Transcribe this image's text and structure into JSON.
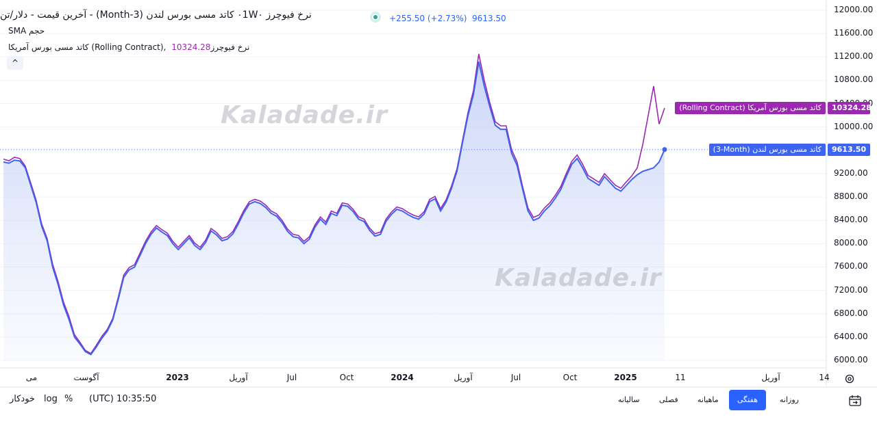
{
  "legend": {
    "title": "نرخ فیوچرز ۰1W۰ کاتد مسی بورس لندن (Month-3) - آخرین قیمت - دلار/تن",
    "change": "+255.50 (+2.73%)",
    "last": "9613.50",
    "volume_label": "SMA حجم",
    "us_series_label": "کاتد مسی بورس آمریکا (Rolling Contract), نرخ فیوچرز",
    "us_series_value": "10324.28",
    "collapse_symbol": "^"
  },
  "watermark": "Kaladade.ir",
  "price_tags": {
    "us_name": "(Rolling Contract) کاتد مسی بورس آمریکا",
    "us_value": "10324.28",
    "lme_name": "(3-Month) کاتد مسی بورس لندن",
    "lme_value": "9613.50"
  },
  "bottom_bar": {
    "auto": "خودکار",
    "log": "log",
    "percent": "%",
    "time": "(UTC) 10:35:50",
    "timeframes": [
      "روزانه",
      "هفتگی",
      "ماهیانه",
      "فصلی",
      "سالیانه"
    ],
    "active_timeframe": "هفتگی"
  },
  "colors": {
    "lme": "#3d63f0",
    "us": "#9c27b0",
    "area": "#c9d3f5",
    "tag_us": "#9c27b0",
    "tag_lme": "#3d63f0",
    "accent": "#2962ff"
  },
  "icons": [
    "settings-icon",
    "date-range-icon",
    "collapse-icon"
  ],
  "chart_data": {
    "type": "line",
    "y_axis_side": "right",
    "ylim": [
      5950,
      12100
    ],
    "yticks": [
      12000,
      11600,
      11200,
      10800,
      10400,
      10000,
      9600,
      9200,
      8800,
      8400,
      8000,
      7600,
      7200,
      6800,
      6400,
      6000
    ],
    "ytick_labels": [
      "12000.00",
      "11600.00",
      "11200.00",
      "10800.00",
      "10400.00",
      "10000.00",
      "9600.00",
      "9200.00",
      "8800.00",
      "8400.00",
      "8000.00",
      "7600.00",
      "7200.00",
      "6800.00",
      "6400.00",
      "6000.00"
    ],
    "x_axis_labels": [
      "می",
      "آگوست",
      "2023",
      "آوریل",
      "Jul",
      "Oct",
      "2024",
      "آوریل",
      "Jul",
      "Oct",
      "2025",
      "11",
      "آوریل",
      "14"
    ],
    "x_axis_bold": [
      false,
      false,
      true,
      false,
      false,
      false,
      true,
      false,
      false,
      false,
      true,
      false,
      false,
      false
    ],
    "points_per_series": 122,
    "series": [
      {
        "name": "کاتد مسی بورس لندن (3-Month)",
        "color": "#3d63f0",
        "area": true,
        "values": [
          9400,
          9380,
          9430,
          9420,
          9300,
          9000,
          8700,
          8300,
          8050,
          7600,
          7300,
          6950,
          6700,
          6400,
          6280,
          6150,
          6100,
          6230,
          6380,
          6500,
          6690,
          7040,
          7420,
          7550,
          7600,
          7800,
          8000,
          8160,
          8270,
          8200,
          8140,
          8000,
          7900,
          8000,
          8100,
          7970,
          7900,
          8020,
          8220,
          8150,
          8050,
          8080,
          8170,
          8340,
          8530,
          8680,
          8720,
          8690,
          8620,
          8520,
          8470,
          8360,
          8210,
          8120,
          8100,
          8000,
          8080,
          8280,
          8420,
          8330,
          8520,
          8480,
          8660,
          8640,
          8550,
          8420,
          8380,
          8230,
          8130,
          8160,
          8380,
          8500,
          8590,
          8560,
          8500,
          8450,
          8420,
          8510,
          8720,
          8770,
          8560,
          8710,
          8950,
          9240,
          9720,
          10190,
          10550,
          11120,
          10700,
          10350,
          10030,
          9960,
          9960,
          9550,
          9340,
          8940,
          8560,
          8400,
          8440,
          8560,
          8650,
          8780,
          8930,
          9150,
          9360,
          9460,
          9300,
          9120,
          9060,
          9000,
          9150,
          9050,
          8950,
          8900,
          9000,
          9100,
          9180,
          9240,
          9270,
          9300,
          9400,
          9613.5
        ]
      },
      {
        "name": "کاتد مسی بورس آمریکا (Rolling Contract)",
        "color": "#9c27b0",
        "area": false,
        "values": [
          9450,
          9420,
          9480,
          9460,
          9330,
          9040,
          8740,
          8340,
          8090,
          7650,
          7350,
          7000,
          6750,
          6440,
          6310,
          6170,
          6120,
          6260,
          6410,
          6530,
          6720,
          7080,
          7460,
          7590,
          7640,
          7840,
          8040,
          8200,
          8310,
          8240,
          8180,
          8040,
          7940,
          8040,
          8140,
          8010,
          7940,
          8060,
          8260,
          8190,
          8090,
          8120,
          8210,
          8380,
          8570,
          8720,
          8760,
          8730,
          8660,
          8560,
          8510,
          8400,
          8250,
          8160,
          8140,
          8040,
          8120,
          8320,
          8460,
          8370,
          8560,
          8520,
          8700,
          8680,
          8590,
          8460,
          8420,
          8270,
          8170,
          8200,
          8420,
          8540,
          8630,
          8600,
          8540,
          8490,
          8460,
          8550,
          8760,
          8810,
          8600,
          8750,
          8990,
          9280,
          9760,
          10240,
          10620,
          11250,
          10800,
          10420,
          10090,
          10020,
          10020,
          9610,
          9400,
          8990,
          8610,
          8450,
          8490,
          8610,
          8700,
          8830,
          8980,
          9200,
          9410,
          9520,
          9360,
          9170,
          9110,
          9050,
          9200,
          9100,
          9000,
          8950,
          9060,
          9160,
          9300,
          9700,
          10200,
          10700,
          10050,
          10324.28
        ]
      }
    ]
  }
}
